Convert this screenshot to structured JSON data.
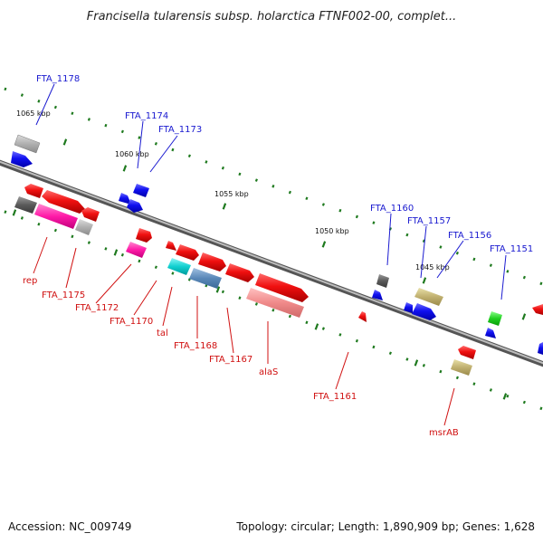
{
  "title": "Francisella tularensis subsp. holarctica FTNF002-00, complet...",
  "footer": {
    "accession": "Accession: NC_009749",
    "summary": "Topology: circular; Length: 1,890,909 bp; Genes: 1,628"
  },
  "ticks": [
    "1065 kbp",
    "1060 kbp",
    "1055 kbp",
    "1050 kbp",
    "1045 kbp"
  ],
  "forward_labels": [
    "FTA_1178",
    "FTA_1174",
    "FTA_1173",
    "FTA_1160",
    "FTA_1157",
    "FTA_1156",
    "FTA_1151"
  ],
  "reverse_labels": [
    "rep",
    "FTA_1175",
    "FTA_1172",
    "FTA_1170",
    "tal",
    "FTA_1168",
    "FTA_1167",
    "alaS",
    "FTA_1161",
    "msrAB"
  ],
  "colors": {
    "backbone": "#7f7f7f",
    "forward_label": "#1a1ad0",
    "reverse_label": "#d01010",
    "tick_mark": "#1f7a1f"
  }
}
